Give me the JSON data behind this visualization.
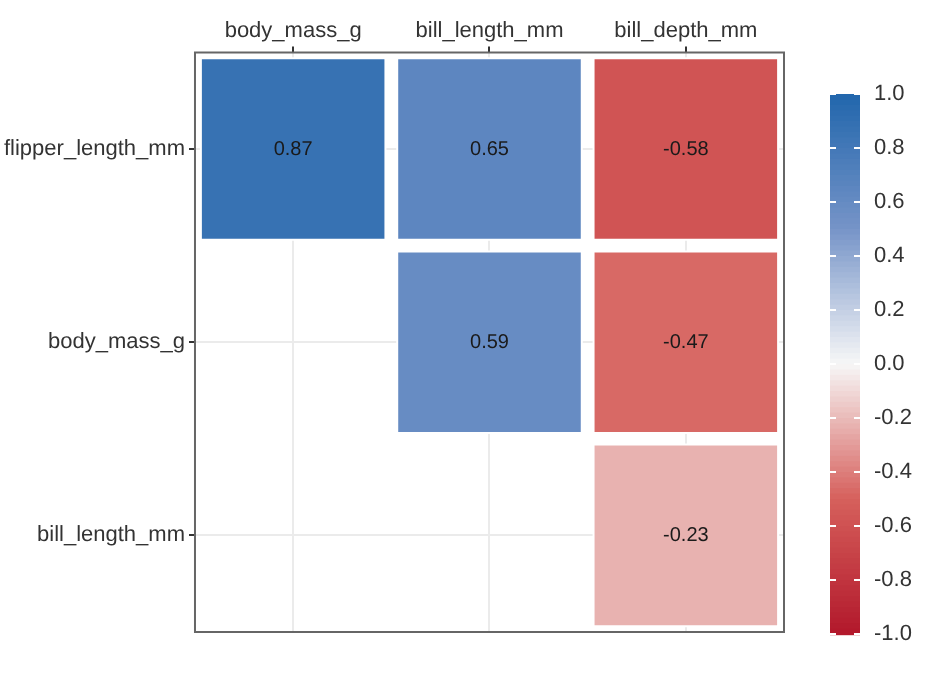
{
  "chart_data": {
    "type": "heatmap",
    "categories": [
      "body_mass_g",
      "bill_length_mm",
      "bill_depth_mm"
    ],
    "y_categories": [
      "flipper_length_mm",
      "body_mass_g",
      "bill_length_mm"
    ],
    "cells": [
      [
        0.87,
        0.65,
        -0.58
      ],
      [
        null,
        0.59,
        -0.47
      ],
      [
        null,
        null,
        -0.23
      ]
    ],
    "clim": [
      -1.0,
      1.0
    ],
    "cticks": [
      {
        "value": 1,
        "label": "1.0"
      },
      {
        "value": 0.8,
        "label": "0.8"
      },
      {
        "value": 0.6,
        "label": "0.6"
      },
      {
        "value": 0.4,
        "label": "0.4"
      },
      {
        "value": 0.2,
        "label": "0.2"
      },
      {
        "value": 0,
        "label": "0.0"
      },
      {
        "value": -0.2,
        "label": "-0.2"
      },
      {
        "value": -0.4,
        "label": "-0.4"
      },
      {
        "value": -0.6,
        "label": "-0.6"
      },
      {
        "value": -0.8,
        "label": "-0.8"
      },
      {
        "value": -1,
        "label": "-1.0"
      }
    ],
    "data_labels": true,
    "grid": true
  }
}
